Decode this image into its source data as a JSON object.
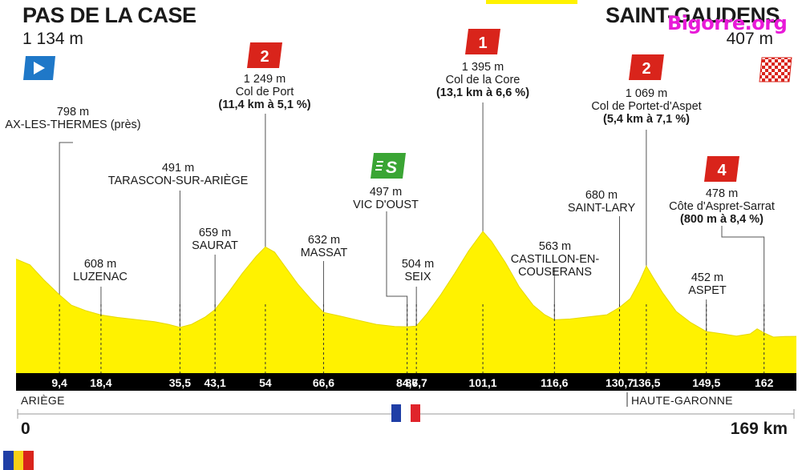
{
  "start": {
    "name": "PAS DE LA CASE",
    "altitude": "1 134 m"
  },
  "finish": {
    "name": "SAINT-GAUDENS",
    "altitude": "407 m"
  },
  "watermark": "Bigorre.org",
  "colors": {
    "profile": "#fff200",
    "bar": "#000000",
    "climb_badge": "#d9241b",
    "sprint_badge": "#3aa534",
    "start_flag": "#1f78c8"
  },
  "climbs": [
    {
      "category": "2",
      "altitude": "1 249 m",
      "name": "Col de Port",
      "details": "(11,4 km à 5,1 %)"
    },
    {
      "category": "1",
      "altitude": "1 395 m",
      "name": "Col de la Core",
      "details": "(13,1 km à 6,6 %)"
    },
    {
      "category": "2",
      "altitude": "1 069 m",
      "name": "Col de Portet-d'Aspet",
      "details": "(5,4 km à 7,1 %)"
    },
    {
      "category": "4",
      "altitude": "478 m",
      "name": "Côte d'Aspret-Sarrat",
      "details": "(800 m à 8,4 %)"
    }
  ],
  "sprint": {
    "icon": "sprint-icon",
    "altitude": "497 m",
    "name": "VIC D'OUST"
  },
  "places": [
    {
      "altitude": "798 m",
      "name": "AX-LES-THERMES (près)"
    },
    {
      "altitude": "608 m",
      "name": "LUZENAC"
    },
    {
      "altitude": "491 m",
      "name": "TARASCON-SUR-ARIÈGE"
    },
    {
      "altitude": "659 m",
      "name": "SAURAT"
    },
    {
      "altitude": "632 m",
      "name": "MASSAT"
    },
    {
      "altitude": "504 m",
      "name": "SEIX"
    },
    {
      "altitude": "563 m",
      "name": "CASTILLON-EN-",
      "name2": "COUSERANS"
    },
    {
      "altitude": "680 m",
      "name": "SAINT-LARY"
    },
    {
      "altitude": "452 m",
      "name": "ASPET"
    }
  ],
  "regions": {
    "left": "ARIÈGE",
    "right": "HAUTE-GARONNE"
  },
  "axis": {
    "start": "0",
    "end": "169 km"
  },
  "chart_data": {
    "type": "area",
    "xlabel": "",
    "ylabel": "",
    "x_unit": "km",
    "y_unit": "m",
    "xlim": [
      0,
      169
    ],
    "km_markers": [
      "9,4",
      "18,4",
      "35,5",
      "43,1",
      "54",
      "66,6",
      "84,7",
      "86,7",
      "101,1",
      "116,6",
      "130,7",
      "136,5",
      "149,5",
      "162"
    ],
    "series": [
      {
        "x": [
          0,
          3,
          6,
          9.4,
          12,
          15,
          18.4,
          22,
          26,
          30,
          33,
          35.5,
          38,
          41,
          43.1,
          46,
          49,
          52,
          54,
          56,
          58,
          61,
          64,
          66.6,
          70,
          74,
          78,
          82,
          84.7,
          86.7,
          89,
          92,
          95,
          98,
          101.1,
          103,
          106,
          109,
          112,
          114.5,
          116.6,
          120,
          124,
          128,
          130.7,
          133,
          135,
          136.5,
          138,
          140,
          143,
          146,
          149.5,
          153,
          156,
          159,
          160.5,
          162,
          164,
          166.5,
          169
        ],
        "y": [
          1134,
          1080,
          940,
          798,
          700,
          650,
          608,
          585,
          565,
          545,
          520,
          491,
          520,
          590,
          659,
          820,
          1000,
          1160,
          1249,
          1200,
          1080,
          900,
          750,
          632,
          600,
          560,
          520,
          500,
          497,
          504,
          620,
          800,
          1000,
          1210,
          1395,
          1300,
          1100,
          870,
          700,
          610,
          563,
          570,
          590,
          610,
          680,
          760,
          920,
          1069,
          960,
          820,
          640,
          540,
          452,
          430,
          410,
          430,
          478,
          440,
          400,
          405,
          407
        ]
      }
    ]
  }
}
